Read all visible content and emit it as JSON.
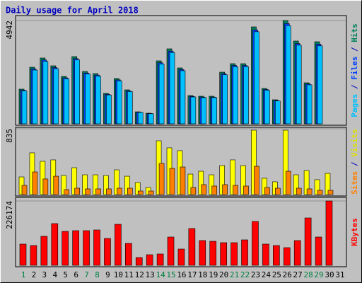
{
  "chart_data": [
    {
      "type": "bar",
      "title": "Daily usage for April 2018",
      "ylim": [
        0,
        4942
      ],
      "yticks": [
        4942
      ],
      "legend_separator": " / ",
      "series": [
        {
          "name": "Pages",
          "color": "#00c0ff",
          "values": [
            1576,
            2573,
            2991,
            2637,
            2155,
            3055,
            2380,
            2283,
            1383,
            2058,
            1544,
            546,
            483,
            2862,
            3409,
            2540,
            1286,
            1254,
            1254,
            2347,
            2733,
            2733,
            4405,
            1608,
            1093,
            4695,
            3762,
            1865,
            3730,
            0,
            0
          ]
        },
        {
          "name": "Files",
          "color": "#0040ff",
          "values": [
            1609,
            2627,
            3054,
            2693,
            2200,
            3120,
            2430,
            2331,
            1412,
            2101,
            1576,
            558,
            493,
            2923,
            3480,
            2594,
            1313,
            1280,
            1280,
            2397,
            2791,
            2791,
            4498,
            1642,
            1116,
            4794,
            3841,
            1904,
            3808,
            0,
            0
          ]
        },
        {
          "name": "Hits",
          "color": "#00805c",
          "values": [
            1659,
            2708,
            3148,
            2776,
            2268,
            3216,
            2505,
            2403,
            1456,
            2166,
            1625,
            575,
            508,
            3013,
            3588,
            2674,
            1354,
            1320,
            1320,
            2471,
            2877,
            2877,
            4637,
            1693,
            1151,
            4942,
            3960,
            1963,
            3926,
            0,
            0
          ]
        }
      ]
    },
    {
      "type": "bar",
      "ylim": [
        0,
        835
      ],
      "yticks": [
        835
      ],
      "legend_separator": " / ",
      "series": [
        {
          "name": "Sites",
          "color": "#ff8000",
          "values": [
            117,
            287,
            198,
            233,
            63,
            81,
            72,
            72,
            72,
            81,
            81,
            45,
            45,
            395,
            332,
            350,
            90,
            126,
            108,
            126,
            117,
            108,
            359,
            90,
            81,
            296,
            81,
            72,
            54,
            54,
            0
          ]
        },
        {
          "name": "Visits",
          "color": "#ffff00",
          "values": [
            224,
            530,
            422,
            440,
            242,
            341,
            251,
            251,
            242,
            314,
            233,
            153,
            90,
            682,
            593,
            557,
            260,
            296,
            251,
            368,
            440,
            368,
            817,
            207,
            162,
            817,
            251,
            305,
            189,
            269,
            0
          ]
        }
      ]
    },
    {
      "type": "bar",
      "ylim": [
        0,
        226174
      ],
      "yticks": [
        226174
      ],
      "series": [
        {
          "name": "KBytes",
          "color": "#ff0000",
          "values": [
            74550,
            69580,
            101885,
            146615,
            119280,
            121765,
            121765,
            124250,
            94430,
            144130,
            77035,
            27335,
            37275,
            39760,
            99400,
            57155,
            129220,
            86975,
            84490,
            79520,
            79520,
            89460,
            154070,
            74550,
            69580,
            62125,
            86975,
            166495,
            99400,
            226174,
            0
          ]
        }
      ],
      "categories": [
        "1",
        "2",
        "3",
        "4",
        "5",
        "6",
        "7",
        "8",
        "9",
        "10",
        "11",
        "12",
        "13",
        "14",
        "15",
        "16",
        "17",
        "18",
        "19",
        "20",
        "21",
        "22",
        "23",
        "24",
        "25",
        "26",
        "27",
        "28",
        "29",
        "30",
        "31"
      ],
      "category_colors": [
        "#008040",
        "#000",
        "#000",
        "#000",
        "#000",
        "#000",
        "#008040",
        "#008040",
        "#000",
        "#000",
        "#000",
        "#000",
        "#000",
        "#008040",
        "#008040",
        "#000",
        "#000",
        "#000",
        "#000",
        "#000",
        "#008040",
        "#008040",
        "#000",
        "#000",
        "#000",
        "#000",
        "#000",
        "#008040",
        "#008040",
        "#000",
        "#000"
      ]
    }
  ]
}
